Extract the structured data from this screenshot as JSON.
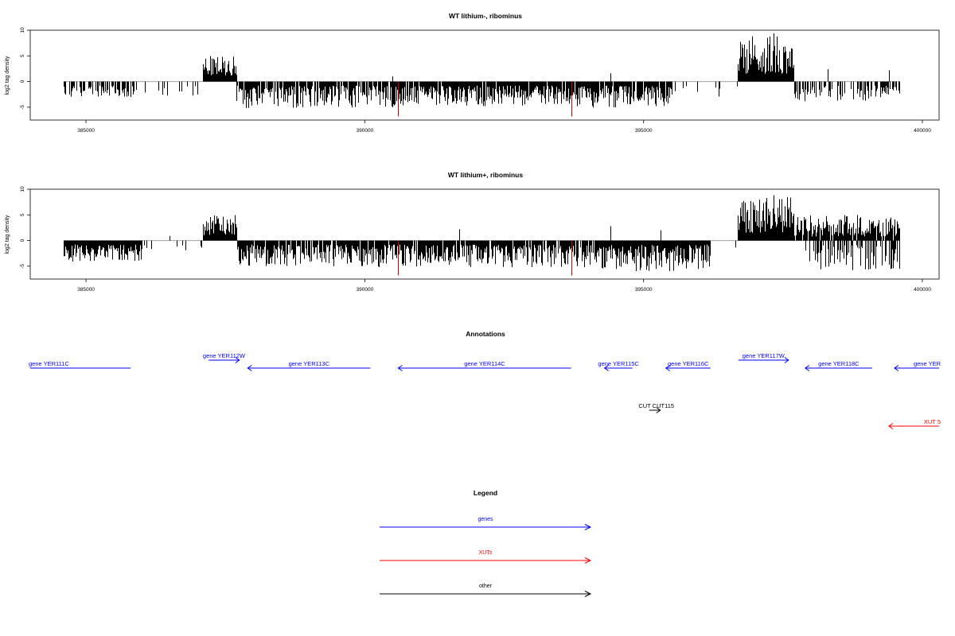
{
  "colors": {
    "genes": "#0000ff",
    "xuts": "#ff0000",
    "other": "#000000",
    "strong_negative": "#cc0000",
    "baseline": "#a0a0a0"
  },
  "chart_data": [
    {
      "type": "bar",
      "title": "WT lithium-, ribominus",
      "xlabel": "",
      "ylabel": "log2 tag density",
      "xlim": [
        384000,
        400300
      ],
      "ylim": [
        -7.5,
        10
      ],
      "x_ticks": [
        385000,
        390000,
        395000,
        400000
      ],
      "y_ticks": [
        -5,
        0,
        5,
        10
      ],
      "y_tick_labels": [
        "-5",
        "0",
        "5",
        "10"
      ],
      "segments": [
        {
          "from": 384600,
          "to": 385900,
          "sign": -1,
          "min": 0.8,
          "max": 3.2,
          "density": 0.55
        },
        {
          "from": 385900,
          "to": 387100,
          "sign": -1,
          "min": 0.8,
          "max": 2.8,
          "density": 0.1
        },
        {
          "from": 387100,
          "to": 387700,
          "sign": 1,
          "min": 1.2,
          "max": 5.0,
          "density": 1.0
        },
        {
          "from": 387700,
          "to": 390500,
          "sign": -1,
          "min": 0.8,
          "max": 5.2,
          "density": 0.85
        },
        {
          "from": 390500,
          "to": 394100,
          "sign": -1,
          "min": 0.8,
          "max": 4.8,
          "density": 0.95
        },
        {
          "from": 394100,
          "to": 395500,
          "sign": -1,
          "min": 0.8,
          "max": 5.2,
          "density": 0.9
        },
        {
          "from": 395500,
          "to": 396700,
          "sign": -1,
          "min": 0.8,
          "max": 3.5,
          "density": 0.05
        },
        {
          "from": 396700,
          "to": 397700,
          "sign": 1,
          "min": 1.5,
          "max": 9.5,
          "density": 1.0
        },
        {
          "from": 397700,
          "to": 399200,
          "sign": -1,
          "min": 0.8,
          "max": 4.0,
          "density": 0.45
        },
        {
          "from": 399200,
          "to": 399600,
          "sign": -1,
          "min": 0.8,
          "max": 3.2,
          "density": 0.8
        }
      ],
      "special_bars": [
        {
          "x": 390600,
          "value": -6.8,
          "color": "red"
        },
        {
          "x": 393700,
          "value": -6.8,
          "color": "red"
        },
        {
          "x": 390500,
          "value": 1.0,
          "color": "black"
        },
        {
          "x": 394400,
          "value": 1.6,
          "color": "black"
        },
        {
          "x": 398300,
          "value": 2.4,
          "color": "black"
        },
        {
          "x": 399400,
          "value": 2.2,
          "color": "black"
        }
      ]
    },
    {
      "type": "bar",
      "title": "WT lithium+, ribominus",
      "xlabel": "",
      "ylabel": "log2 tag density",
      "xlim": [
        384000,
        400300
      ],
      "ylim": [
        -7.5,
        10
      ],
      "x_ticks": [
        385000,
        390000,
        395000,
        400000
      ],
      "y_ticks": [
        -5,
        0,
        5,
        10
      ],
      "y_tick_labels": [
        "-5",
        "0",
        "5",
        "10"
      ],
      "segments": [
        {
          "from": 384600,
          "to": 386000,
          "sign": -1,
          "min": 0.8,
          "max": 4.2,
          "density": 1.0
        },
        {
          "from": 386000,
          "to": 387100,
          "sign": -1,
          "min": 0.8,
          "max": 2.0,
          "density": 0.15
        },
        {
          "from": 387100,
          "to": 387700,
          "sign": 1,
          "min": 1.0,
          "max": 5.0,
          "density": 1.0
        },
        {
          "from": 387700,
          "to": 390200,
          "sign": -1,
          "min": 0.8,
          "max": 5.0,
          "density": 0.85
        },
        {
          "from": 390200,
          "to": 394200,
          "sign": -1,
          "min": 0.8,
          "max": 5.2,
          "density": 0.9
        },
        {
          "from": 394200,
          "to": 396200,
          "sign": -1,
          "min": 0.8,
          "max": 6.0,
          "density": 1.0
        },
        {
          "from": 396200,
          "to": 396700,
          "sign": -1,
          "min": 0.5,
          "max": 1.5,
          "density": 0.05
        },
        {
          "from": 396700,
          "to": 397700,
          "sign": 1,
          "min": 1.5,
          "max": 9.0,
          "density": 1.0
        },
        {
          "from": 397700,
          "to": 399600,
          "sign": 1,
          "min": 0.8,
          "max": 5.0,
          "density": 0.9
        },
        {
          "from": 397900,
          "to": 399600,
          "sign": -1,
          "min": 0.8,
          "max": 5.8,
          "density": 0.5
        }
      ],
      "special_bars": [
        {
          "x": 390600,
          "value": -6.8,
          "color": "red"
        },
        {
          "x": 393700,
          "value": -6.8,
          "color": "red"
        },
        {
          "x": 386500,
          "value": 0.9,
          "color": "black"
        },
        {
          "x": 391700,
          "value": 2.2,
          "color": "black"
        },
        {
          "x": 394400,
          "value": 2.8,
          "color": "black"
        },
        {
          "x": 395300,
          "value": 2.0,
          "color": "black"
        }
      ]
    }
  ],
  "annotations": {
    "title": "Annotations",
    "features": [
      {
        "label": "gene YER111C",
        "start": 383500,
        "end": 385800,
        "strand": "-",
        "kind": "genes",
        "row": 0,
        "label_pos": "left"
      },
      {
        "label": "gene YER112W",
        "start": 387200,
        "end": 387750,
        "strand": "+",
        "kind": "genes",
        "row": -1,
        "label_pos": "center"
      },
      {
        "label": "gene YER113C",
        "start": 387900,
        "end": 390100,
        "strand": "-",
        "kind": "genes",
        "row": 0,
        "label_pos": "center"
      },
      {
        "label": "gene YER114C",
        "start": 390600,
        "end": 393700,
        "strand": "-",
        "kind": "genes",
        "row": 0,
        "label_pos": "center"
      },
      {
        "label": "gene YER115C",
        "start": 394300,
        "end": 394800,
        "strand": "-",
        "kind": "genes",
        "row": 0,
        "label_pos": "center"
      },
      {
        "label": "gene YER116C",
        "start": 395400,
        "end": 396200,
        "strand": "-",
        "kind": "genes",
        "row": 0,
        "label_pos": "center"
      },
      {
        "label": "gene YER117W",
        "start": 396700,
        "end": 397600,
        "strand": "+",
        "kind": "genes",
        "row": -1,
        "label_pos": "center"
      },
      {
        "label": "gene YER118C",
        "start": 397900,
        "end": 399100,
        "strand": "-",
        "kind": "genes",
        "row": 0,
        "label_pos": "center"
      },
      {
        "label": "gene YER",
        "start": 399500,
        "end": 401500,
        "strand": "-",
        "kind": "genes",
        "row": 0,
        "label_pos": "clip"
      },
      {
        "label": "CUT CUT115",
        "start": 395100,
        "end": 395300,
        "strand": "+",
        "kind": "other",
        "row": 2,
        "label_pos": "over"
      },
      {
        "label": "XUT 5",
        "start": 399400,
        "end": 401500,
        "strand": "-",
        "kind": "xuts",
        "row": 3,
        "label_pos": "clip"
      }
    ]
  },
  "legend": {
    "title": "Legend",
    "items": [
      {
        "label": "genes",
        "kind": "genes"
      },
      {
        "label": "XUTs",
        "kind": "xuts"
      },
      {
        "label": "other",
        "kind": "other"
      }
    ]
  }
}
